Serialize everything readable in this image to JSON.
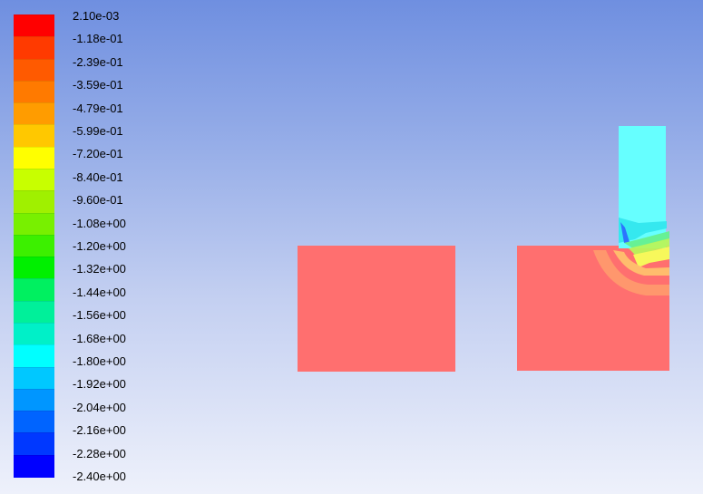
{
  "colormap": {
    "labels": [
      "2.10e-03",
      "-1.18e-01",
      "-2.39e-01",
      "-3.59e-01",
      "-4.79e-01",
      "-5.99e-01",
      "-7.20e-01",
      "-8.40e-01",
      "-9.60e-01",
      "-1.08e+00",
      "-1.20e+00",
      "-1.32e+00",
      "-1.44e+00",
      "-1.56e+00",
      "-1.68e+00",
      "-1.80e+00",
      "-1.92e+00",
      "-2.04e+00",
      "-2.16e+00",
      "-2.28e+00",
      "-2.40e+00"
    ],
    "colors": [
      "#ff0000",
      "#ff3a00",
      "#ff5a00",
      "#ff7a00",
      "#ff9c00",
      "#ffc800",
      "#ffff00",
      "#c8ff00",
      "#a0f000",
      "#78f000",
      "#3cf000",
      "#00f000",
      "#00f060",
      "#00f09a",
      "#00f0c8",
      "#00ffff",
      "#00c8ff",
      "#0096ff",
      "#0064ff",
      "#0038ff",
      "#0000ff"
    ]
  },
  "scene": {
    "block_color": "#ff6f6f",
    "inlet_color": "#66ffff"
  }
}
